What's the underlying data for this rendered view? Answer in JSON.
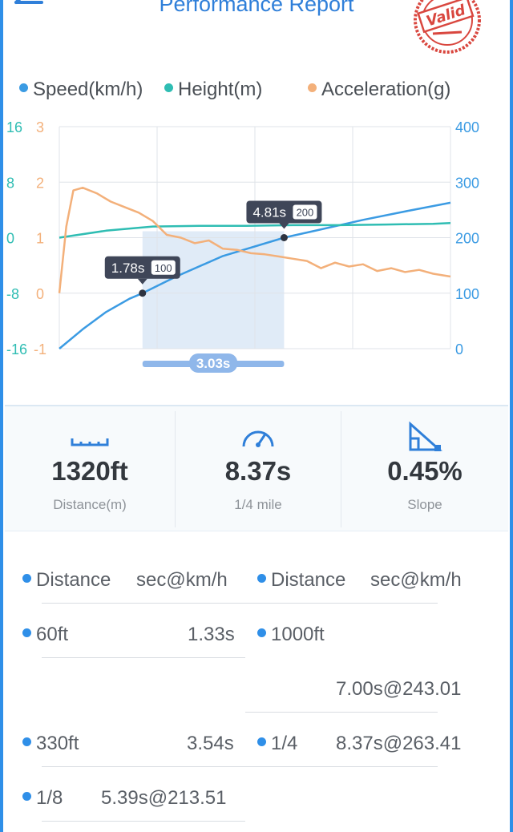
{
  "header": {
    "title": "Performance Report",
    "stamp_text": "Valid"
  },
  "legend": [
    {
      "label": "Speed(km/h)",
      "color": "#3b9be3"
    },
    {
      "label": "Height(m)",
      "color": "#2fbdb3"
    },
    {
      "label": "Acceleration(g)",
      "color": "#f3b07a"
    }
  ],
  "chart_data": {
    "type": "line",
    "series": [
      {
        "name": "Speed(km/h)",
        "axis": "right",
        "color": "#3b9be3",
        "x": [
          0,
          0.5,
          1,
          1.5,
          1.78,
          2.5,
          3.5,
          4.81,
          5.5,
          6.5,
          7.5,
          8.37
        ],
        "values": [
          0,
          35,
          66,
          90,
          100,
          130,
          167,
          200,
          213,
          232,
          249,
          263
        ]
      },
      {
        "name": "Height(m)",
        "axis": "left1",
        "color": "#2fbdb3",
        "x": [
          0,
          1,
          2,
          3,
          4,
          5,
          6,
          7,
          8,
          8.37
        ],
        "values": [
          0,
          1,
          1.6,
          1.7,
          1.7,
          1.8,
          1.8,
          1.9,
          2.0,
          2.1
        ]
      },
      {
        "name": "Acceleration(g)",
        "axis": "left2",
        "color": "#f3b07a",
        "x": [
          0,
          0.15,
          0.3,
          0.5,
          0.8,
          1.1,
          1.4,
          1.7,
          2.0,
          2.3,
          2.6,
          2.9,
          3.2,
          3.5,
          3.8,
          4.1,
          4.4,
          4.7,
          5.0,
          5.3,
          5.6,
          5.9,
          6.2,
          6.5,
          6.8,
          7.1,
          7.4,
          7.7,
          8.0,
          8.37
        ],
        "values": [
          0,
          1.2,
          1.85,
          1.9,
          1.8,
          1.65,
          1.55,
          1.45,
          1.3,
          1.05,
          1.0,
          0.9,
          0.95,
          0.8,
          0.78,
          0.72,
          0.7,
          0.66,
          0.62,
          0.58,
          0.45,
          0.55,
          0.48,
          0.52,
          0.4,
          0.45,
          0.38,
          0.42,
          0.35,
          0.3
        ]
      }
    ],
    "x_range": [
      0,
      8.37
    ],
    "axes": {
      "left1": {
        "ticks": [
          "16",
          "8",
          "0",
          "-8",
          "-16"
        ],
        "range": [
          -16,
          16
        ],
        "color": "#2fbdb3"
      },
      "left2": {
        "ticks": [
          "3",
          "2",
          "1",
          "0",
          "-1"
        ],
        "range": [
          -1,
          3
        ],
        "color": "#f3b07a"
      },
      "right": {
        "ticks": [
          "400",
          "300",
          "200",
          "100",
          "0"
        ],
        "range": [
          0,
          400
        ],
        "color": "#3b9be3"
      }
    },
    "markers": [
      {
        "x": 1.78,
        "y": 100,
        "time_label": "1.78s",
        "speed_label": "100"
      },
      {
        "x": 4.81,
        "y": 200,
        "time_label": "4.81s",
        "speed_label": "200"
      }
    ],
    "interval": {
      "from": 1.78,
      "to": 4.81,
      "label": "3.03s"
    },
    "grid": true
  },
  "stats": [
    {
      "icon": "ruler-icon",
      "value": "1320ft",
      "label": "Distance(m)"
    },
    {
      "icon": "speedometer-icon",
      "value": "8.37s",
      "label": "1/4 mile"
    },
    {
      "icon": "slope-icon",
      "value": "0.45%",
      "label": "Slope"
    }
  ],
  "table": {
    "left_header": {
      "col1": "Distance",
      "col2": "sec@km/h"
    },
    "right_header": {
      "col1": "Distance",
      "col2": "sec@km/h"
    },
    "left_rows": [
      {
        "distance": "60ft",
        "value": "1.33s"
      },
      {
        "distance": "330ft",
        "value": "3.54s"
      },
      {
        "distance": "1/8",
        "value": "5.39s@213.51"
      }
    ],
    "right_rows": [
      {
        "distance": "1000ft",
        "value": "7.00s@243.01"
      },
      {
        "distance": "1/4",
        "value": "8.37s@263.41"
      }
    ]
  }
}
